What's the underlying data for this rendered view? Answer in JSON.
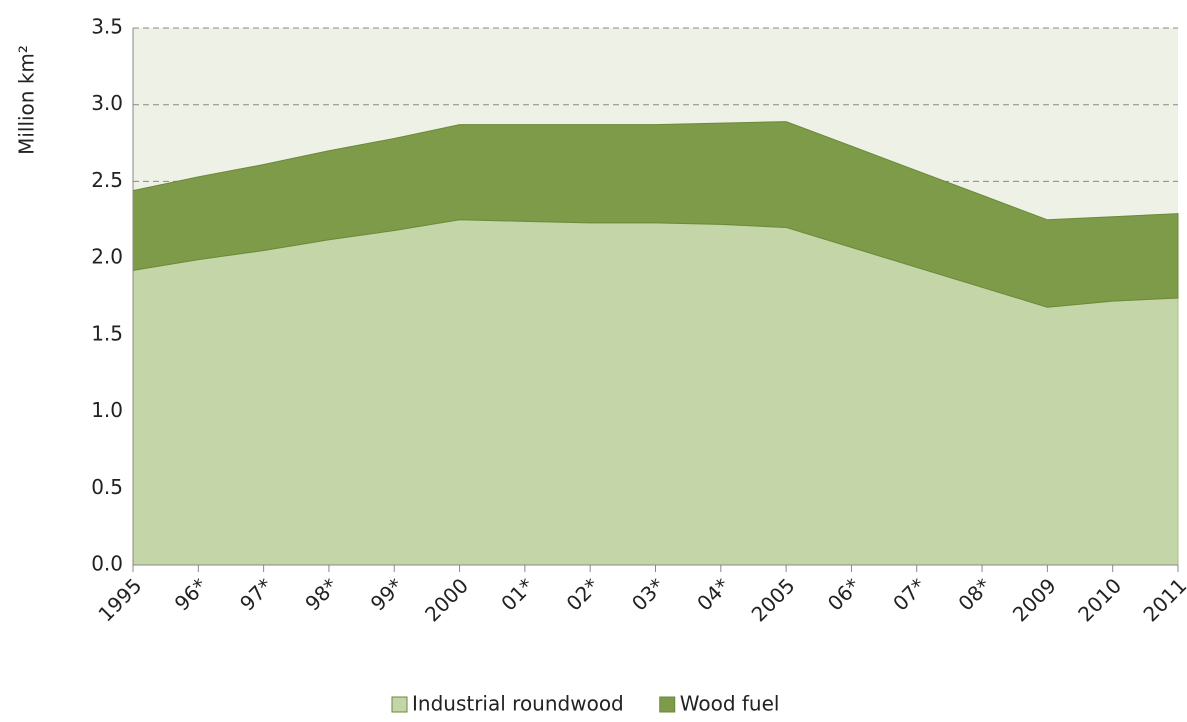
{
  "chart_data": {
    "type": "stacked_area",
    "y_label": "Million km²",
    "categories": [
      "1995",
      "96*",
      "97*",
      "98*",
      "99*",
      "2000",
      "01*",
      "02*",
      "03*",
      "04*",
      "2005",
      "06*",
      "07*",
      "08*",
      "2009",
      "2010",
      "2011"
    ],
    "series": [
      {
        "name": "Industrial roundwood",
        "color": "#c4d6a7",
        "values": [
          1.92,
          1.99,
          2.05,
          2.12,
          2.18,
          2.25,
          2.24,
          2.23,
          2.23,
          2.22,
          2.2,
          2.07,
          1.94,
          1.81,
          1.68,
          1.72,
          1.74
        ]
      },
      {
        "name": "Wood fuel",
        "color": "#7d9b49",
        "values": [
          0.52,
          0.54,
          0.56,
          0.58,
          0.6,
          0.62,
          0.63,
          0.64,
          0.64,
          0.66,
          0.69,
          0.66,
          0.63,
          0.6,
          0.57,
          0.55,
          0.55
        ]
      }
    ],
    "ylim": [
      0,
      3.5
    ],
    "yticks": [
      {
        "value": 0,
        "label": "0.0"
      },
      {
        "value": 0.5,
        "label": "0.5"
      },
      {
        "value": 1,
        "label": "1.0"
      },
      {
        "value": 1.5,
        "label": "1.5"
      },
      {
        "value": 2,
        "label": "2.0"
      },
      {
        "value": 2.5,
        "label": "2.5"
      },
      {
        "value": 3,
        "label": "3.0"
      },
      {
        "value": 3.5,
        "label": "3.5"
      }
    ],
    "grid": true,
    "legend": "bottom"
  }
}
